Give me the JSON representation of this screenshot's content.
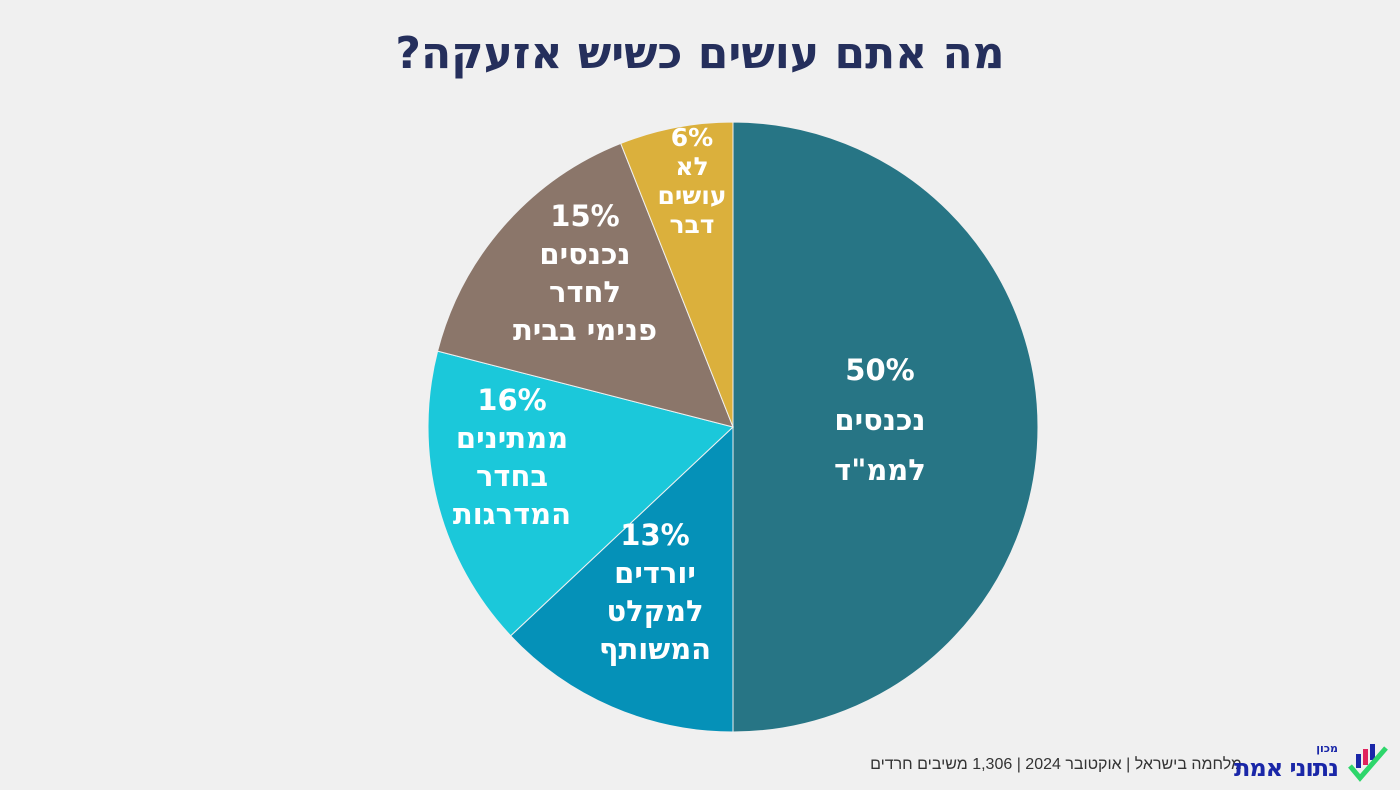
{
  "chart_data": {
    "type": "pie",
    "title": "מה אתם עושים כשיש אזעקה?",
    "start_angle": "top",
    "direction": "clockwise",
    "slices": [
      {
        "label": [
          "50%",
          "נכנסים",
          "לממ\"ד"
        ],
        "value": 50,
        "color": "#277585"
      },
      {
        "label": [
          "13%",
          "יורדים",
          "למקלט",
          "המשותף"
        ],
        "value": 13,
        "color": "#0591b8"
      },
      {
        "label": [
          "16%",
          "ממתינים",
          "בחדר",
          "המדרגות"
        ],
        "value": 16,
        "color": "#1bc8da"
      },
      {
        "label": [
          "15%",
          "נכנסים",
          "לחדר",
          "פנימי בבית"
        ],
        "value": 15,
        "color": "#8b766a"
      },
      {
        "label": [
          "6%",
          "לא",
          "עושים",
          "דבר"
        ],
        "value": 6,
        "color": "#dbb03c"
      }
    ]
  },
  "footer": "מלחמה בישראל | אוקטובר 2024 | 1,306 משיבים חרדים",
  "logo": {
    "small": "מכון",
    "main": "נתוני אמת"
  }
}
